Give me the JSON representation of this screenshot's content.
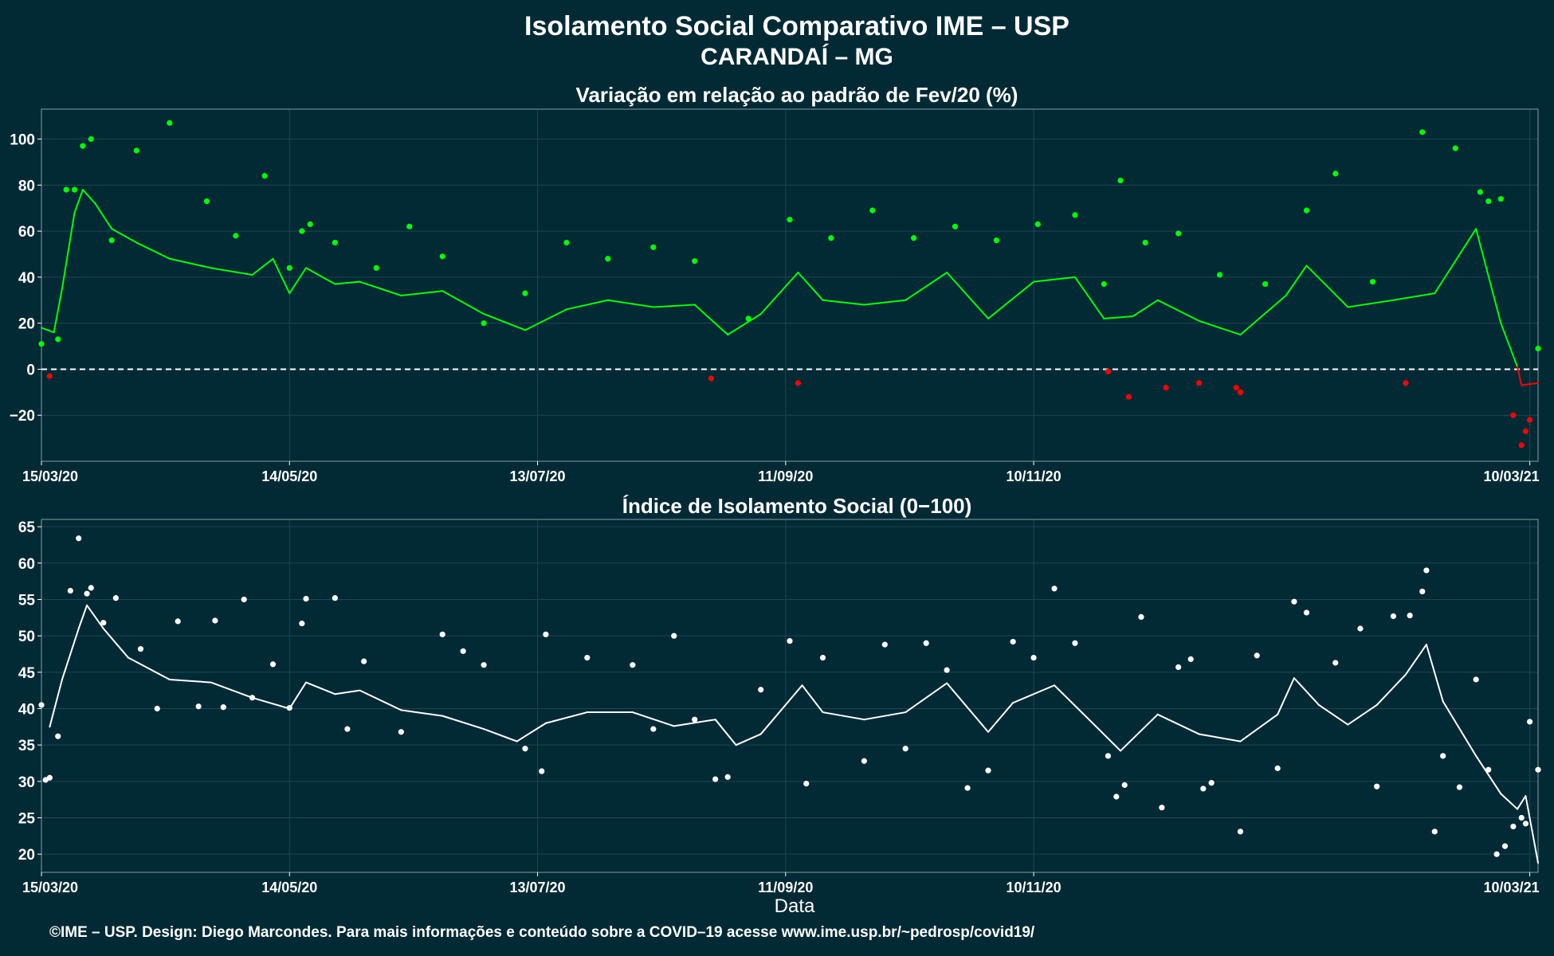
{
  "header": {
    "title": "Isolamento Social Comparativo IME – USP",
    "subtitle": "CARANDAÍ – MG"
  },
  "footer": {
    "credit": "©IME – USP. Design: Diego Marcondes. Para mais informações e conteúdo sobre a COVID–19 acesse www.ime.usp.br/~pedrosp/covid19/"
  },
  "colors": {
    "background": "#022a35",
    "positive": "#00ff00",
    "negative": "#ff0000",
    "index": "#ffffff",
    "grid": "#1f4550"
  },
  "chart_data": [
    {
      "type": "scatter",
      "title": "Variação em relação ao padrão de Fev/20 (%)",
      "xlabel": "",
      "ylabel": "",
      "x_ticks": [
        "15/03/20",
        "14/05/20",
        "13/07/20",
        "11/09/20",
        "10/11/20",
        "10/03/21"
      ],
      "y_ticks": [
        "−20",
        "0",
        "20",
        "40",
        "60",
        "80",
        "100"
      ],
      "ylim": [
        -40,
        113
      ],
      "xlim": [
        "15/03/20",
        "12/03/21"
      ],
      "reference_line": 0,
      "grid": true,
      "series": [
        {
          "points": [
            [
              "15/03/20",
              11
            ],
            [
              "17/03/20",
              -3
            ],
            [
              "19/03/20",
              13
            ],
            [
              "21/03/20",
              78
            ],
            [
              "23/03/20",
              78
            ],
            [
              "25/03/20",
              97
            ],
            [
              "27/03/20",
              100
            ],
            [
              "01/04/20",
              56
            ],
            [
              "07/04/20",
              95
            ],
            [
              "15/04/20",
              107
            ],
            [
              "24/04/20",
              73
            ],
            [
              "01/05/20",
              58
            ],
            [
              "08/05/20",
              84
            ],
            [
              "14/05/20",
              44
            ],
            [
              "17/05/20",
              60
            ],
            [
              "19/05/20",
              63
            ],
            [
              "25/05/20",
              55
            ],
            [
              "04/06/20",
              44
            ],
            [
              "12/06/20",
              62
            ],
            [
              "20/06/20",
              49
            ],
            [
              "30/06/20",
              20
            ],
            [
              "10/07/20",
              33
            ],
            [
              "20/07/20",
              55
            ],
            [
              "30/07/20",
              48
            ],
            [
              "10/08/20",
              53
            ],
            [
              "20/08/20",
              47
            ],
            [
              "24/08/20",
              -4
            ],
            [
              "02/09/20",
              22
            ],
            [
              "12/09/20",
              65
            ],
            [
              "14/09/20",
              -6
            ],
            [
              "22/09/20",
              57
            ],
            [
              "02/10/20",
              69
            ],
            [
              "12/10/20",
              57
            ],
            [
              "22/10/20",
              62
            ],
            [
              "01/11/20",
              56
            ],
            [
              "11/11/20",
              63
            ],
            [
              "20/11/20",
              67
            ],
            [
              "27/11/20",
              37
            ],
            [
              "28/11/20",
              -1
            ],
            [
              "01/12/20",
              82
            ],
            [
              "03/12/20",
              -12
            ],
            [
              "07/12/20",
              55
            ],
            [
              "12/12/20",
              -8
            ],
            [
              "15/12/20",
              59
            ],
            [
              "20/12/20",
              -6
            ],
            [
              "25/12/20",
              41
            ],
            [
              "29/12/20",
              -8
            ],
            [
              "30/12/20",
              -10
            ],
            [
              "05/01/21",
              37
            ],
            [
              "15/01/21",
              69
            ],
            [
              "22/01/21",
              85
            ],
            [
              "31/01/21",
              38
            ],
            [
              "08/02/21",
              -6
            ],
            [
              "12/02/21",
              103
            ],
            [
              "20/02/21",
              96
            ],
            [
              "26/02/21",
              77
            ],
            [
              "28/02/21",
              73
            ],
            [
              "03/03/21",
              74
            ],
            [
              "06/03/21",
              -20
            ],
            [
              "08/03/21",
              -33
            ],
            [
              "09/03/21",
              -27
            ],
            [
              "10/03/21",
              -22
            ],
            [
              "12/03/21",
              9
            ]
          ],
          "moving_average": [
            [
              "15/03/20",
              18
            ],
            [
              "18/03/20",
              16
            ],
            [
              "20/03/20",
              35
            ],
            [
              "23/03/20",
              68
            ],
            [
              "25/03/20",
              78
            ],
            [
              "28/03/20",
              72
            ],
            [
              "01/04/20",
              61
            ],
            [
              "07/04/20",
              55
            ],
            [
              "15/04/20",
              48
            ],
            [
              "25/04/20",
              44
            ],
            [
              "05/05/20",
              41
            ],
            [
              "10/05/20",
              48
            ],
            [
              "14/05/20",
              33
            ],
            [
              "18/05/20",
              44
            ],
            [
              "25/05/20",
              37
            ],
            [
              "31/05/20",
              38
            ],
            [
              "10/06/20",
              32
            ],
            [
              "20/06/20",
              34
            ],
            [
              "30/06/20",
              24
            ],
            [
              "10/07/20",
              17
            ],
            [
              "20/07/20",
              26
            ],
            [
              "30/07/20",
              30
            ],
            [
              "10/08/20",
              27
            ],
            [
              "20/08/20",
              28
            ],
            [
              "28/08/20",
              15
            ],
            [
              "05/09/20",
              24
            ],
            [
              "14/09/20",
              42
            ],
            [
              "20/09/20",
              30
            ],
            [
              "30/09/20",
              28
            ],
            [
              "10/10/20",
              30
            ],
            [
              "20/10/20",
              42
            ],
            [
              "30/10/20",
              22
            ],
            [
              "10/11/20",
              38
            ],
            [
              "20/11/20",
              40
            ],
            [
              "27/11/20",
              22
            ],
            [
              "04/12/20",
              23
            ],
            [
              "10/12/20",
              30
            ],
            [
              "20/12/20",
              21
            ],
            [
              "30/12/20",
              15
            ],
            [
              "10/01/21",
              32
            ],
            [
              "15/01/21",
              45
            ],
            [
              "25/01/21",
              27
            ],
            [
              "05/02/21",
              30
            ],
            [
              "15/02/21",
              33
            ],
            [
              "25/02/21",
              61
            ],
            [
              "03/03/21",
              20
            ],
            [
              "07/03/21",
              1
            ],
            [
              "08/03/21",
              -7
            ],
            [
              "12/03/21",
              -6
            ]
          ]
        }
      ]
    },
    {
      "type": "scatter",
      "title": "Índice de Isolamento Social (0−100)",
      "xlabel": "Data",
      "ylabel": "",
      "x_ticks": [
        "15/03/20",
        "14/05/20",
        "13/07/20",
        "11/09/20",
        "10/11/20",
        "10/03/21"
      ],
      "y_ticks": [
        "20",
        "25",
        "30",
        "35",
        "40",
        "45",
        "50",
        "55",
        "60",
        "65"
      ],
      "ylim": [
        17.5,
        66
      ],
      "xlim": [
        "15/03/20",
        "12/03/21"
      ],
      "grid": true,
      "series": [
        {
          "points": [
            [
              "15/03/20",
              40.5
            ],
            [
              "16/03/20",
              30.2
            ],
            [
              "17/03/20",
              30.5
            ],
            [
              "19/03/20",
              36.2
            ],
            [
              "22/03/20",
              56.2
            ],
            [
              "24/03/20",
              63.4
            ],
            [
              "26/03/20",
              55.8
            ],
            [
              "27/03/20",
              56.6
            ],
            [
              "30/03/20",
              51.8
            ],
            [
              "02/04/20",
              55.2
            ],
            [
              "08/04/20",
              48.2
            ],
            [
              "12/04/20",
              40
            ],
            [
              "17/04/20",
              52
            ],
            [
              "22/04/20",
              40.3
            ],
            [
              "26/04/20",
              52.1
            ],
            [
              "28/04/20",
              40.2
            ],
            [
              "03/05/20",
              55
            ],
            [
              "05/05/20",
              41.5
            ],
            [
              "10/05/20",
              46.1
            ],
            [
              "14/05/20",
              40.1
            ],
            [
              "17/05/20",
              51.7
            ],
            [
              "18/05/20",
              55.1
            ],
            [
              "25/05/20",
              55.2
            ],
            [
              "28/05/20",
              37.2
            ],
            [
              "01/06/20",
              46.5
            ],
            [
              "10/06/20",
              36.8
            ],
            [
              "20/06/20",
              50.2
            ],
            [
              "25/06/20",
              47.9
            ],
            [
              "30/06/20",
              46
            ],
            [
              "10/07/20",
              34.5
            ],
            [
              "14/07/20",
              31.4
            ],
            [
              "15/07/20",
              50.2
            ],
            [
              "25/07/20",
              47
            ],
            [
              "05/08/20",
              46
            ],
            [
              "10/08/20",
              37.2
            ],
            [
              "15/08/20",
              50
            ],
            [
              "20/08/20",
              38.5
            ],
            [
              "25/08/20",
              30.3
            ],
            [
              "28/08/20",
              30.6
            ],
            [
              "05/09/20",
              42.6
            ],
            [
              "12/09/20",
              49.3
            ],
            [
              "16/09/20",
              29.7
            ],
            [
              "20/09/20",
              47
            ],
            [
              "30/09/20",
              32.8
            ],
            [
              "05/10/20",
              48.8
            ],
            [
              "10/10/20",
              34.5
            ],
            [
              "15/10/20",
              49
            ],
            [
              "20/10/20",
              45.3
            ],
            [
              "25/10/20",
              29.1
            ],
            [
              "30/10/20",
              31.5
            ],
            [
              "05/11/20",
              49.2
            ],
            [
              "10/11/20",
              47
            ],
            [
              "15/11/20",
              56.5
            ],
            [
              "20/11/20",
              49
            ],
            [
              "28/11/20",
              33.5
            ],
            [
              "30/11/20",
              27.9
            ],
            [
              "02/12/20",
              29.5
            ],
            [
              "06/12/20",
              52.6
            ],
            [
              "11/12/20",
              26.4
            ],
            [
              "15/12/20",
              45.7
            ],
            [
              "18/12/20",
              46.8
            ],
            [
              "21/12/20",
              29
            ],
            [
              "23/12/20",
              29.8
            ],
            [
              "30/12/20",
              23.1
            ],
            [
              "03/01/21",
              47.3
            ],
            [
              "08/01/21",
              31.8
            ],
            [
              "12/01/21",
              54.7
            ],
            [
              "15/01/21",
              53.2
            ],
            [
              "22/01/21",
              46.3
            ],
            [
              "28/01/21",
              51
            ],
            [
              "01/02/21",
              29.3
            ],
            [
              "05/02/21",
              52.7
            ],
            [
              "09/02/21",
              52.8
            ],
            [
              "12/02/21",
              56.1
            ],
            [
              "13/02/21",
              59
            ],
            [
              "15/02/21",
              23.1
            ],
            [
              "17/02/21",
              33.5
            ],
            [
              "21/02/21",
              29.2
            ],
            [
              "25/02/21",
              44
            ],
            [
              "28/02/21",
              31.6
            ],
            [
              "02/03/21",
              20
            ],
            [
              "04/03/21",
              21.1
            ],
            [
              "06/03/21",
              23.8
            ],
            [
              "08/03/21",
              25
            ],
            [
              "09/03/21",
              24.2
            ],
            [
              "10/03/21",
              38.2
            ],
            [
              "12/03/21",
              31.6
            ]
          ],
          "moving_average": [
            [
              "17/03/20",
              37.5
            ],
            [
              "20/03/20",
              44
            ],
            [
              "24/03/20",
              51
            ],
            [
              "26/03/20",
              54.2
            ],
            [
              "30/03/20",
              51
            ],
            [
              "05/04/20",
              47
            ],
            [
              "15/04/20",
              44
            ],
            [
              "25/04/20",
              43.6
            ],
            [
              "05/05/20",
              41.5
            ],
            [
              "14/05/20",
              40
            ],
            [
              "18/05/20",
              43.6
            ],
            [
              "25/05/20",
              42
            ],
            [
              "31/05/20",
              42.5
            ],
            [
              "10/06/20",
              39.8
            ],
            [
              "20/06/20",
              39
            ],
            [
              "30/06/20",
              37.2
            ],
            [
              "08/07/20",
              35.5
            ],
            [
              "15/07/20",
              38
            ],
            [
              "25/07/20",
              39.5
            ],
            [
              "05/08/20",
              39.5
            ],
            [
              "15/08/20",
              37.6
            ],
            [
              "25/08/20",
              38.5
            ],
            [
              "30/08/20",
              35
            ],
            [
              "05/09/20",
              36.5
            ],
            [
              "15/09/20",
              43.2
            ],
            [
              "20/09/20",
              39.5
            ],
            [
              "30/09/20",
              38.5
            ],
            [
              "10/10/20",
              39.5
            ],
            [
              "20/10/20",
              43.5
            ],
            [
              "30/10/20",
              36.8
            ],
            [
              "05/11/20",
              40.8
            ],
            [
              "15/11/20",
              43.2
            ],
            [
              "25/11/20",
              37.6
            ],
            [
              "01/12/20",
              34.2
            ],
            [
              "10/12/20",
              39.2
            ],
            [
              "20/12/20",
              36.5
            ],
            [
              "30/12/20",
              35.5
            ],
            [
              "08/01/21",
              39.2
            ],
            [
              "12/01/21",
              44.2
            ],
            [
              "18/01/21",
              40.5
            ],
            [
              "25/01/21",
              37.8
            ],
            [
              "01/02/21",
              40.5
            ],
            [
              "08/02/21",
              44.7
            ],
            [
              "13/02/21",
              48.8
            ],
            [
              "17/02/21",
              41
            ],
            [
              "25/02/21",
              33.5
            ],
            [
              "03/03/21",
              28.3
            ],
            [
              "07/03/21",
              26.2
            ],
            [
              "09/03/21",
              28
            ],
            [
              "12/03/21",
              18.8
            ]
          ]
        }
      ]
    }
  ]
}
